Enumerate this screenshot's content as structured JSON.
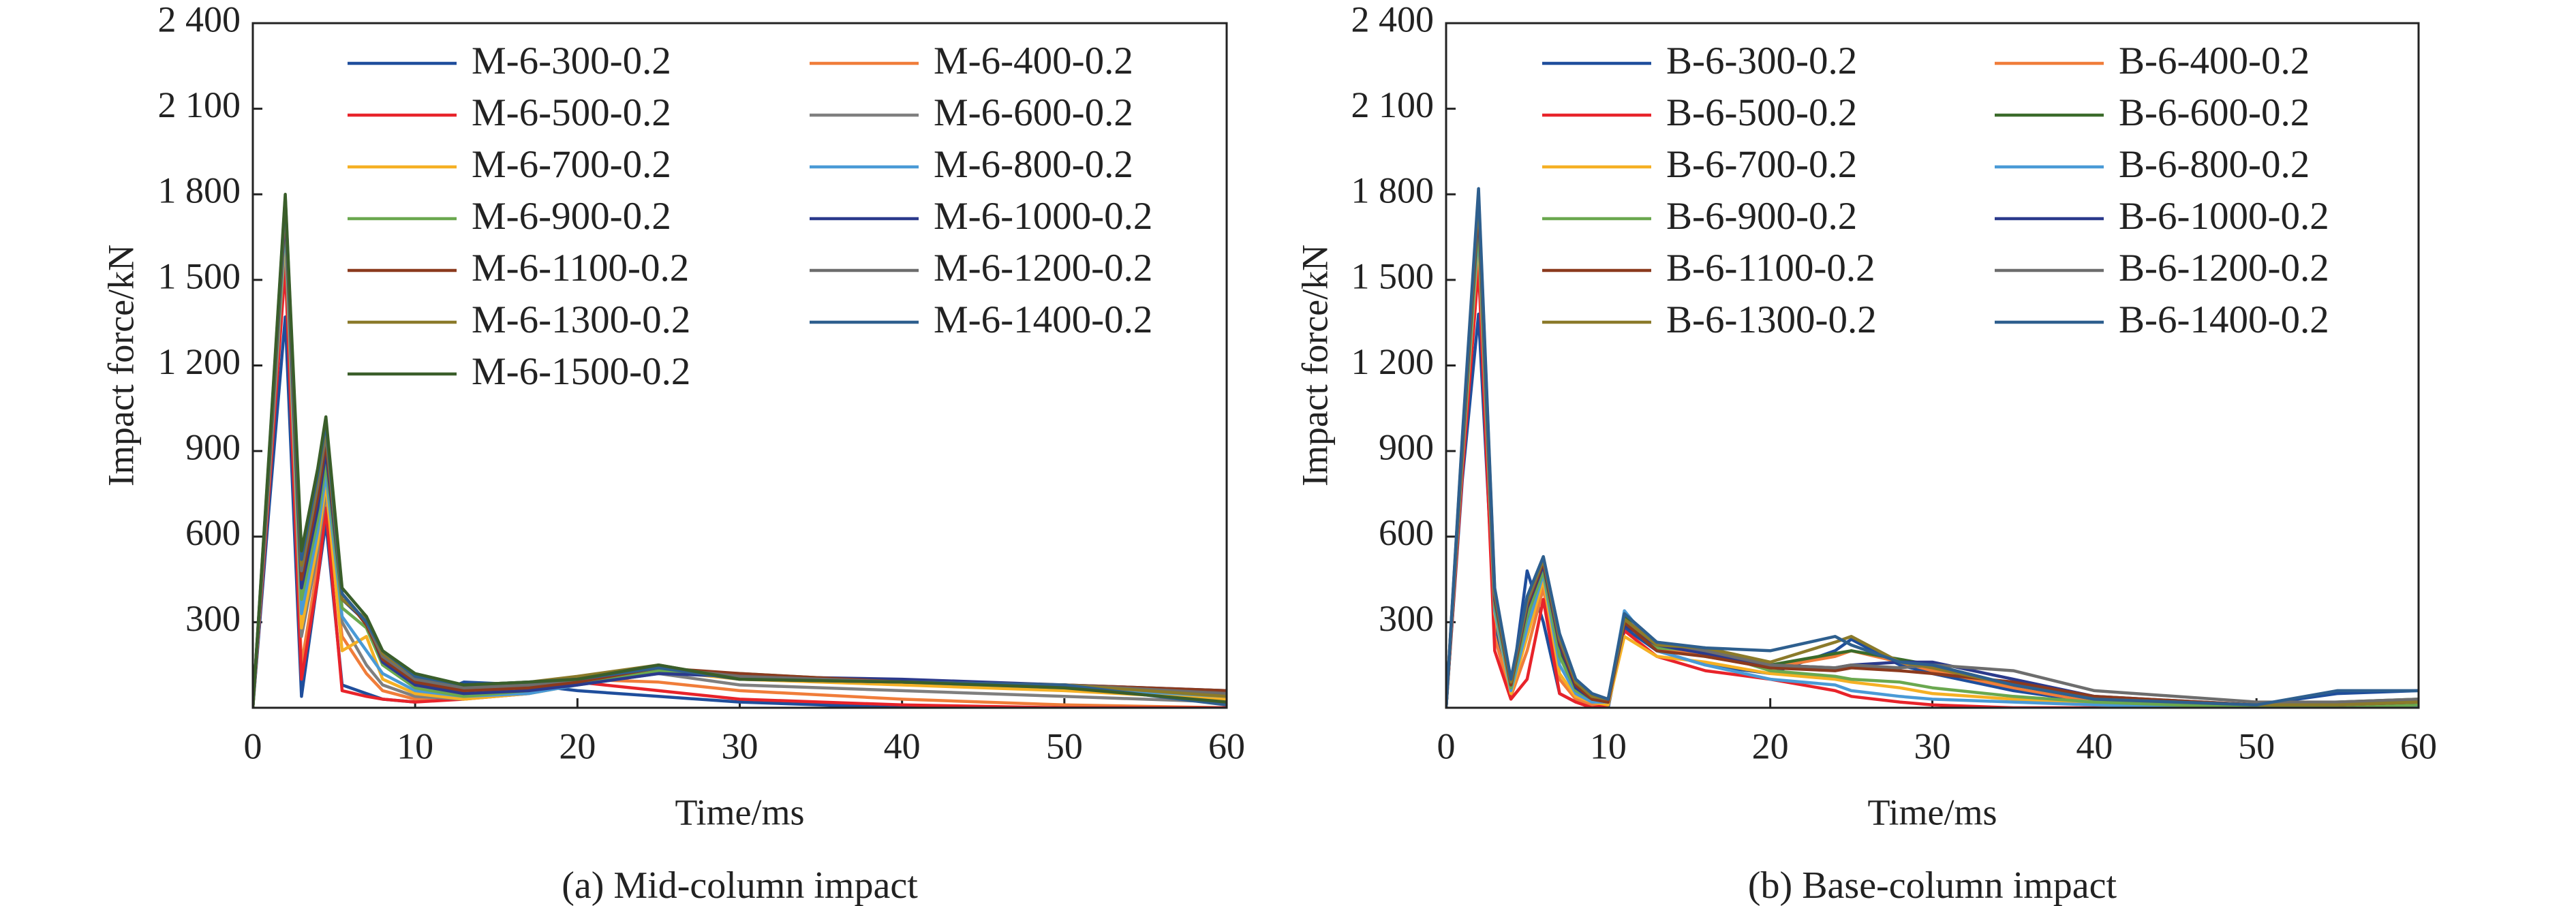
{
  "chart_data": [
    {
      "type": "line",
      "caption": "(a) Mid-column impact",
      "x_label": "Time/ms",
      "y_label": "Impact force/kN",
      "xlim": [
        0,
        60
      ],
      "ylim": [
        0,
        2400
      ],
      "xticks": [
        0,
        10,
        20,
        30,
        40,
        50,
        60
      ],
      "yticks": [
        300,
        600,
        900,
        {
          "value": 1200,
          "label": "1 200"
        },
        {
          "value": 1500,
          "label": "1 500"
        },
        {
          "value": 1800,
          "label": "1 800"
        },
        {
          "value": 2100,
          "label": "2 100"
        },
        {
          "value": 2400,
          "label": "2 400"
        }
      ],
      "x": [
        0,
        1,
        2,
        3,
        4,
        4.5,
        5.5,
        7,
        8,
        10,
        13,
        17,
        20,
        25,
        30,
        40,
        50,
        60
      ],
      "series": [
        {
          "name": "M-6-300-0.2",
          "color": "#1f4e9c",
          "values": [
            0,
            700,
            1370,
            40,
            450,
            650,
            80,
            50,
            30,
            20,
            90,
            80,
            60,
            40,
            20,
            0,
            0,
            0
          ]
        },
        {
          "name": "M-6-400-0.2",
          "color": "#f07d3a",
          "values": [
            0,
            780,
            1620,
            150,
            500,
            720,
            250,
            120,
            60,
            30,
            40,
            80,
            100,
            90,
            60,
            30,
            10,
            0
          ]
        },
        {
          "name": "M-6-500-0.2",
          "color": "#e8232a",
          "values": [
            0,
            760,
            1550,
            100,
            450,
            700,
            60,
            40,
            30,
            20,
            30,
            50,
            90,
            60,
            30,
            10,
            0,
            0
          ]
        },
        {
          "name": "M-6-600-0.2",
          "color": "#7f7f7f",
          "values": [
            0,
            800,
            1650,
            250,
            550,
            760,
            300,
            150,
            80,
            40,
            30,
            60,
            100,
            120,
            80,
            60,
            40,
            20
          ]
        },
        {
          "name": "M-6-700-0.2",
          "color": "#f5b024",
          "values": [
            0,
            810,
            1680,
            280,
            580,
            790,
            200,
            250,
            100,
            50,
            30,
            50,
            80,
            130,
            100,
            80,
            60,
            30
          ]
        },
        {
          "name": "M-6-800-0.2",
          "color": "#4a9ad6",
          "values": [
            0,
            820,
            1700,
            330,
            620,
            820,
            320,
            200,
            120,
            60,
            40,
            50,
            80,
            120,
            110,
            90,
            70,
            40
          ]
        },
        {
          "name": "M-6-900-0.2",
          "color": "#6aa84f",
          "values": [
            0,
            830,
            1720,
            380,
            660,
            860,
            350,
            280,
            150,
            70,
            40,
            60,
            90,
            130,
            120,
            90,
            80,
            50
          ]
        },
        {
          "name": "M-6-1000-0.2",
          "color": "#2b3a8c",
          "values": [
            0,
            840,
            1740,
            420,
            700,
            900,
            380,
            300,
            160,
            80,
            50,
            60,
            80,
            120,
            110,
            100,
            80,
            60
          ]
        },
        {
          "name": "M-6-1100-0.2",
          "color": "#8b3a1e",
          "values": [
            0,
            850,
            1760,
            450,
            740,
            930,
            400,
            290,
            170,
            90,
            60,
            70,
            90,
            140,
            120,
            90,
            80,
            60
          ]
        },
        {
          "name": "M-6-1200-0.2",
          "color": "#6d6d6d",
          "values": [
            0,
            860,
            1770,
            480,
            780,
            960,
            400,
            300,
            180,
            100,
            70,
            80,
            100,
            140,
            110,
            90,
            80,
            50
          ]
        },
        {
          "name": "M-6-1300-0.2",
          "color": "#8b7a2a",
          "values": [
            0,
            870,
            1780,
            500,
            800,
            980,
            380,
            310,
            190,
            110,
            80,
            90,
            110,
            150,
            100,
            90,
            80,
            40
          ]
        },
        {
          "name": "M-6-1400-0.2",
          "color": "#2e5f8e",
          "values": [
            0,
            880,
            1790,
            520,
            820,
            1000,
            400,
            300,
            200,
            110,
            80,
            90,
            100,
            140,
            100,
            90,
            80,
            10
          ]
        },
        {
          "name": "M-6-1500-0.2",
          "color": "#3a5e2a",
          "values": [
            0,
            890,
            1800,
            550,
            840,
            1020,
            420,
            320,
            200,
            120,
            80,
            90,
            100,
            150,
            100,
            90,
            70,
            20
          ]
        }
      ]
    },
    {
      "type": "line",
      "caption": "(b) Base-column impact",
      "x_label": "Time/ms",
      "y_label": "Impact force/kN",
      "xlim": [
        0,
        60
      ],
      "ylim": [
        0,
        2400
      ],
      "xticks": [
        0,
        10,
        20,
        30,
        40,
        50,
        60
      ],
      "yticks": [
        300,
        600,
        900,
        {
          "value": 1200,
          "label": "1 200"
        },
        {
          "value": 1500,
          "label": "1 500"
        },
        {
          "value": 1800,
          "label": "1 800"
        },
        {
          "value": 2100,
          "label": "2 100"
        },
        {
          "value": 2400,
          "label": "2 400"
        }
      ],
      "x": [
        0,
        1,
        2,
        3,
        4,
        5,
        6,
        7,
        8,
        9,
        10,
        11,
        13,
        16,
        20,
        24,
        25,
        28,
        30,
        35,
        40,
        50,
        55,
        60
      ],
      "series": [
        {
          "name": "B-6-300-0.2",
          "color": "#1f4e9c",
          "values": [
            0,
            800,
            1380,
            300,
            50,
            480,
            300,
            50,
            20,
            10,
            0,
            280,
            200,
            150,
            120,
            200,
            240,
            150,
            120,
            60,
            20,
            10,
            50,
            60
          ]
        },
        {
          "name": "B-6-400-0.2",
          "color": "#f07d3a",
          "values": [
            0,
            850,
            1600,
            250,
            40,
            200,
            420,
            100,
            30,
            10,
            20,
            300,
            210,
            180,
            140,
            180,
            200,
            160,
            130,
            70,
            20,
            0,
            0,
            10
          ]
        },
        {
          "name": "B-6-500-0.2",
          "color": "#e8232a",
          "values": [
            0,
            820,
            1550,
            200,
            30,
            100,
            380,
            50,
            20,
            0,
            10,
            270,
            180,
            130,
            100,
            60,
            40,
            20,
            10,
            0,
            0,
            0,
            0,
            0
          ]
        },
        {
          "name": "B-6-600-0.2",
          "color": "#3a6b2a",
          "values": [
            0,
            900,
            1720,
            350,
            60,
            300,
            500,
            200,
            80,
            30,
            20,
            320,
            220,
            200,
            150,
            190,
            200,
            170,
            150,
            80,
            30,
            10,
            20,
            30
          ]
        },
        {
          "name": "B-6-700-0.2",
          "color": "#f5b024",
          "values": [
            0,
            870,
            1650,
            330,
            50,
            250,
            450,
            120,
            40,
            20,
            10,
            250,
            180,
            160,
            120,
            100,
            90,
            70,
            50,
            30,
            10,
            0,
            0,
            0
          ]
        },
        {
          "name": "B-6-800-0.2",
          "color": "#4a9ad6",
          "values": [
            0,
            880,
            1680,
            340,
            60,
            280,
            470,
            150,
            50,
            20,
            20,
            340,
            200,
            150,
            100,
            80,
            60,
            40,
            30,
            20,
            10,
            0,
            0,
            0
          ]
        },
        {
          "name": "B-6-900-0.2",
          "color": "#6aa84f",
          "values": [
            0,
            890,
            1700,
            360,
            70,
            320,
            480,
            180,
            60,
            30,
            20,
            300,
            210,
            200,
            130,
            110,
            100,
            90,
            70,
            40,
            20,
            0,
            0,
            10
          ]
        },
        {
          "name": "B-6-1000-0.2",
          "color": "#2b3a8c",
          "values": [
            0,
            910,
            1750,
            380,
            80,
            350,
            500,
            220,
            70,
            30,
            20,
            290,
            220,
            190,
            150,
            140,
            150,
            160,
            160,
            100,
            40,
            10,
            10,
            20
          ]
        },
        {
          "name": "B-6-1100-0.2",
          "color": "#8b3a1e",
          "values": [
            0,
            920,
            1770,
            390,
            80,
            360,
            510,
            230,
            80,
            30,
            20,
            300,
            200,
            180,
            140,
            130,
            140,
            130,
            120,
            90,
            40,
            10,
            10,
            20
          ]
        },
        {
          "name": "B-6-1200-0.2",
          "color": "#6d6d6d",
          "values": [
            0,
            930,
            1790,
            400,
            90,
            370,
            520,
            240,
            90,
            40,
            30,
            310,
            230,
            200,
            150,
            140,
            150,
            140,
            150,
            130,
            60,
            20,
            20,
            30
          ]
        },
        {
          "name": "B-6-1300-0.2",
          "color": "#8b7a2a",
          "values": [
            0,
            940,
            1800,
            410,
            90,
            380,
            520,
            250,
            90,
            40,
            30,
            310,
            220,
            210,
            160,
            230,
            250,
            160,
            140,
            80,
            30,
            10,
            10,
            20
          ]
        },
        {
          "name": "B-6-1400-0.2",
          "color": "#2e5f8e",
          "values": [
            0,
            950,
            1820,
            420,
            100,
            390,
            530,
            260,
            100,
            50,
            30,
            330,
            230,
            210,
            200,
            250,
            220,
            160,
            150,
            80,
            30,
            10,
            60,
            60
          ]
        }
      ]
    }
  ]
}
